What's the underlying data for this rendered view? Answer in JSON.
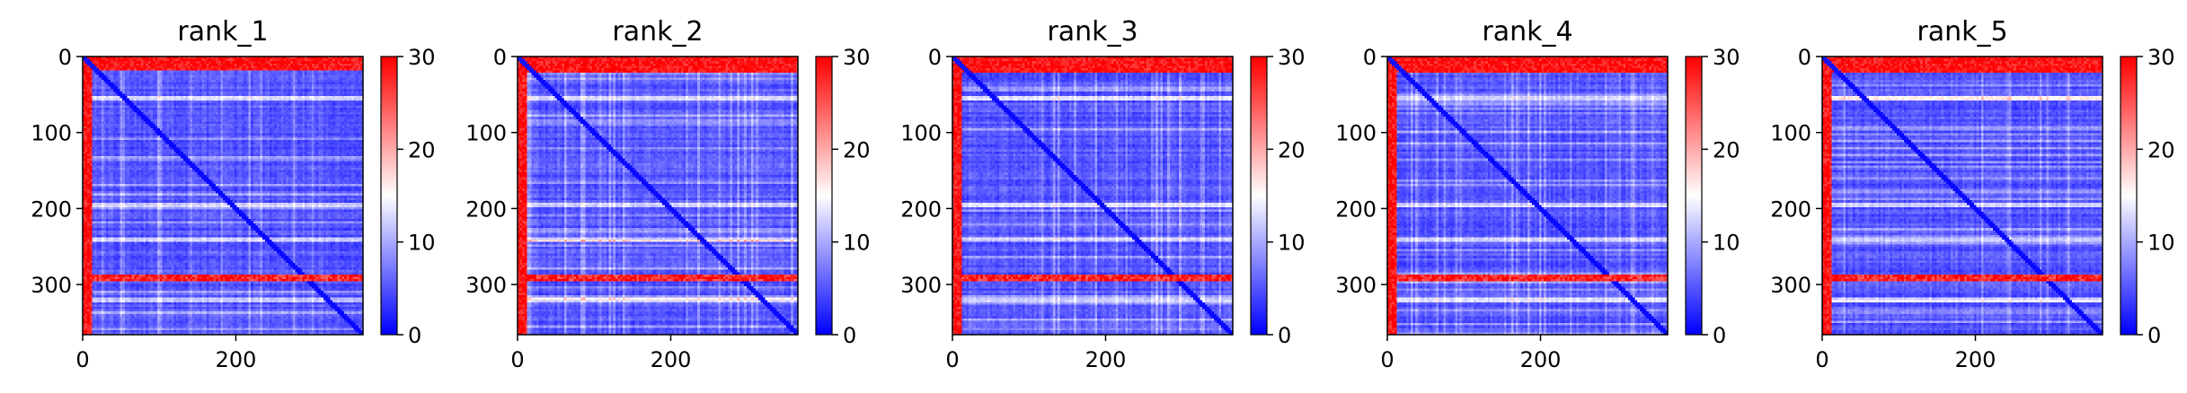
{
  "chart_data": [
    {
      "type": "heatmap",
      "title": "rank_1",
      "matrix_size": 366,
      "x_ticks": [
        0,
        200
      ],
      "y_ticks": [
        0,
        100,
        200,
        300
      ],
      "colorbar": {
        "min": 0,
        "max": 30,
        "ticks": [
          0,
          10,
          20,
          30
        ]
      },
      "features": {
        "highlight_rows": [
          [
            0,
            18
          ],
          [
            288,
            294
          ]
        ],
        "highlight_cols": [
          [
            0,
            12
          ]
        ],
        "secondary_rows": [
          55,
          195,
          240,
          320
        ]
      }
    },
    {
      "type": "heatmap",
      "title": "rank_2",
      "matrix_size": 366,
      "x_ticks": [
        0,
        200
      ],
      "y_ticks": [
        0,
        100,
        200,
        300
      ],
      "colorbar": {
        "min": 0,
        "max": 30,
        "ticks": [
          0,
          10,
          20,
          30
        ]
      },
      "features": {
        "highlight_rows": [
          [
            0,
            20
          ],
          [
            288,
            294
          ]
        ],
        "highlight_cols": [
          [
            0,
            12
          ]
        ],
        "secondary_rows": [
          55,
          195,
          240,
          320
        ]
      }
    },
    {
      "type": "heatmap",
      "title": "rank_3",
      "matrix_size": 366,
      "x_ticks": [
        0,
        200
      ],
      "y_ticks": [
        0,
        100,
        200,
        300
      ],
      "colorbar": {
        "min": 0,
        "max": 30,
        "ticks": [
          0,
          10,
          20,
          30
        ]
      },
      "features": {
        "highlight_rows": [
          [
            0,
            20
          ],
          [
            288,
            294
          ]
        ],
        "highlight_cols": [
          [
            0,
            12
          ]
        ],
        "secondary_rows": [
          55,
          195,
          240,
          320
        ]
      }
    },
    {
      "type": "heatmap",
      "title": "rank_4",
      "matrix_size": 366,
      "x_ticks": [
        0,
        200
      ],
      "y_ticks": [
        0,
        100,
        200,
        300
      ],
      "colorbar": {
        "min": 0,
        "max": 30,
        "ticks": [
          0,
          10,
          20,
          30
        ]
      },
      "features": {
        "highlight_rows": [
          [
            0,
            20
          ],
          [
            288,
            294
          ]
        ],
        "highlight_cols": [
          [
            0,
            12
          ]
        ],
        "secondary_rows": [
          55,
          195,
          240,
          320
        ]
      }
    },
    {
      "type": "heatmap",
      "title": "rank_5",
      "matrix_size": 366,
      "x_ticks": [
        0,
        200
      ],
      "y_ticks": [
        0,
        100,
        200,
        300
      ],
      "colorbar": {
        "min": 0,
        "max": 30,
        "ticks": [
          0,
          10,
          20,
          30
        ]
      },
      "features": {
        "highlight_rows": [
          [
            0,
            20
          ],
          [
            288,
            294
          ]
        ],
        "highlight_cols": [
          [
            0,
            12
          ]
        ],
        "secondary_rows": [
          55,
          195,
          240,
          320
        ]
      }
    }
  ],
  "colors": {
    "low": "#0000ff",
    "mid": "#ffffff",
    "high": "#ff0000",
    "axis": "#000000"
  }
}
